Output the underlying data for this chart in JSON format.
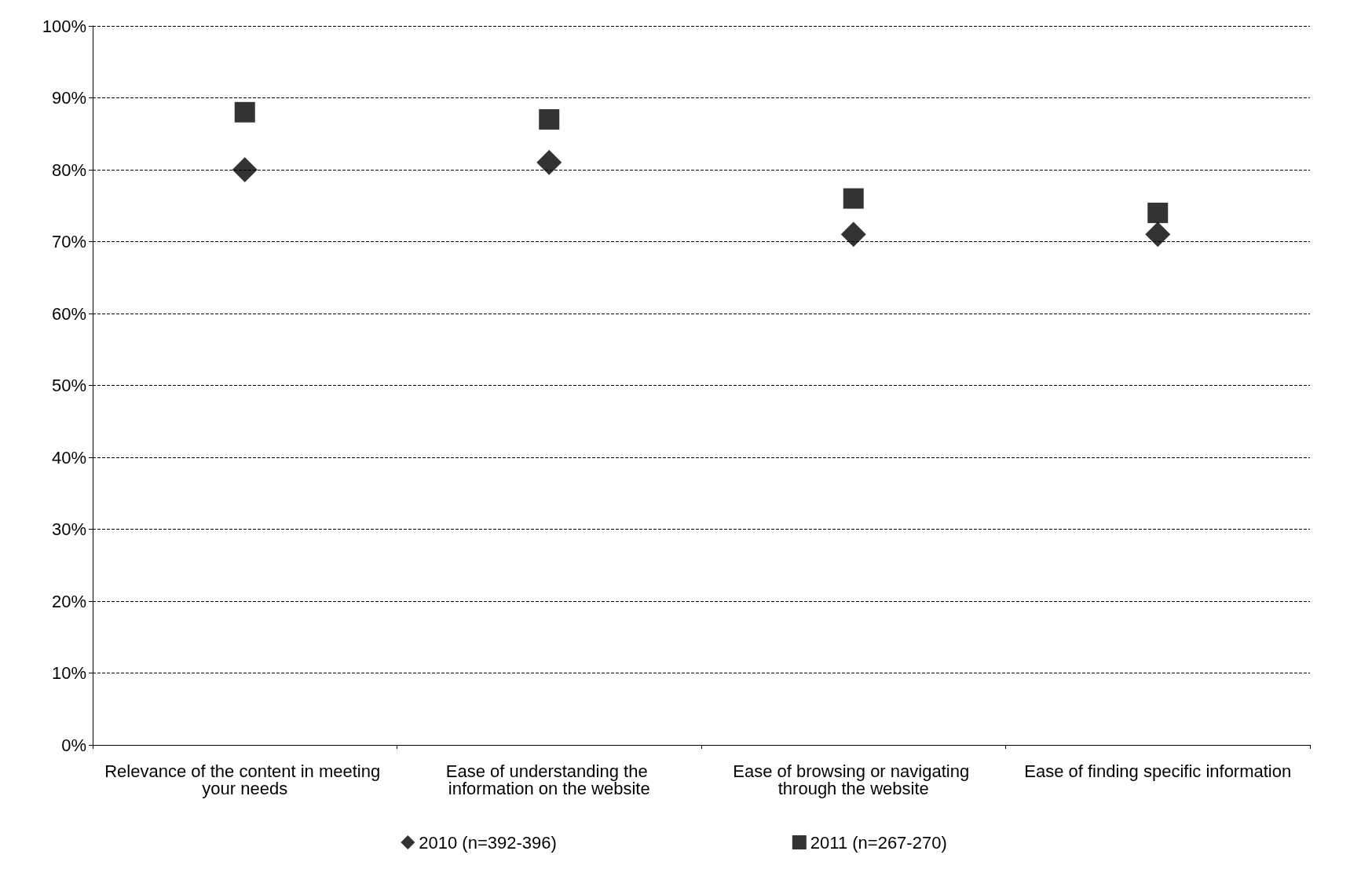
{
  "chart_data": {
    "type": "scatter",
    "categories": [
      "Relevance of the content in meeting your needs",
      "Ease of understanding the information on the website",
      "Ease of browsing or navigating through the website",
      "Ease of finding specific information"
    ],
    "series": [
      {
        "name": "2010 (n=392-396)",
        "color": "#000000",
        "marker": "diamond",
        "values": [
          80,
          81,
          71,
          71
        ]
      },
      {
        "name": "2011 (n=267-270)",
        "color": "#000000",
        "marker": "square",
        "values": [
          88,
          87,
          76,
          74
        ]
      }
    ],
    "ylim": [
      0,
      100
    ],
    "yticks": [
      {
        "value": 0,
        "label": "0%"
      },
      {
        "value": 10,
        "label": "10%"
      },
      {
        "value": 20,
        "label": "20%"
      },
      {
        "value": 30,
        "label": "30%"
      },
      {
        "value": 40,
        "label": "40%"
      },
      {
        "value": 50,
        "label": "50%"
      },
      {
        "value": 60,
        "label": "60%"
      },
      {
        "value": 70,
        "label": "70%"
      },
      {
        "value": 80,
        "label": "80%"
      },
      {
        "value": 90,
        "label": "90%"
      },
      {
        "value": 100,
        "label": "100%"
      }
    ],
    "grid": "y",
    "legend": "bottom"
  }
}
